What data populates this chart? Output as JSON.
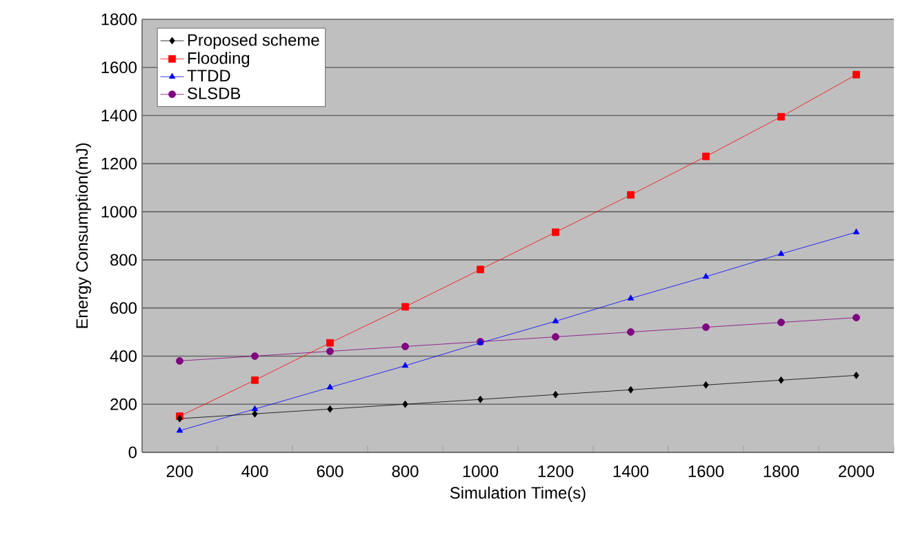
{
  "chart_data": {
    "type": "line",
    "xlabel": "Simulation Time(s)",
    "ylabel": "Energy Consumption(mJ)",
    "categories": [
      "200",
      "400",
      "600",
      "800",
      "1000",
      "1200",
      "1400",
      "1600",
      "1800",
      "2000"
    ],
    "ylim": [
      0,
      1800
    ],
    "yticks": [
      0,
      200,
      400,
      600,
      800,
      1000,
      1200,
      1400,
      1600,
      1800
    ],
    "grid": "y",
    "legend": "top left",
    "series": [
      {
        "name": "Proposed scheme",
        "color": "#000000",
        "marker": "diamond",
        "values": [
          140,
          160,
          180,
          200,
          220,
          240,
          260,
          280,
          300,
          320
        ]
      },
      {
        "name": "Flooding",
        "color": "#ff0000",
        "marker": "square",
        "values": [
          150,
          300,
          455,
          605,
          760,
          915,
          1070,
          1230,
          1395,
          1570
        ]
      },
      {
        "name": "TTDD",
        "color": "#0000ff",
        "marker": "triangle",
        "values": [
          90,
          180,
          270,
          360,
          455,
          545,
          640,
          730,
          825,
          915
        ]
      },
      {
        "name": "SLSDB",
        "color": "#800080",
        "marker": "circle",
        "values": [
          380,
          400,
          420,
          440,
          460,
          480,
          500,
          520,
          540,
          560
        ]
      }
    ]
  }
}
